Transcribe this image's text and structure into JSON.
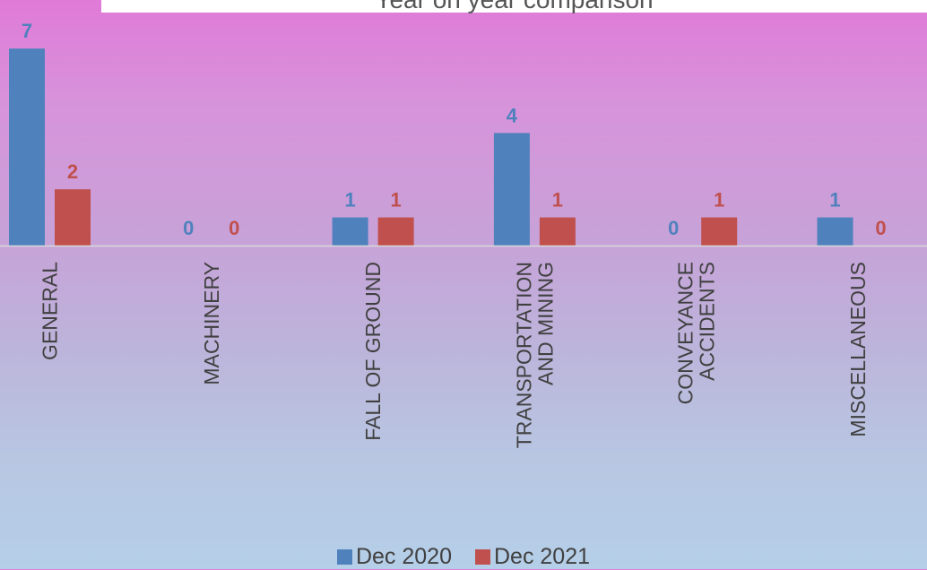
{
  "chart_data": {
    "type": "bar",
    "title": "Year on year comparison",
    "categories": [
      "GENERAL",
      "MACHINERY",
      "FALL OF GROUND",
      "TRANSPORTATION AND MINING",
      "CONVEYANCE ACCIDENTS",
      "MISCELLANEOUS"
    ],
    "series": [
      {
        "name": "Dec 2020",
        "color": "#4f81bd",
        "values": [
          7,
          0,
          1,
          4,
          0,
          1
        ]
      },
      {
        "name": "Dec 2021",
        "color": "#c0504d",
        "values": [
          2,
          0,
          1,
          1,
          1,
          0
        ]
      }
    ],
    "ylim": [
      0,
      8
    ],
    "grid": false,
    "legend_position": "bottom",
    "data_labels": true
  }
}
